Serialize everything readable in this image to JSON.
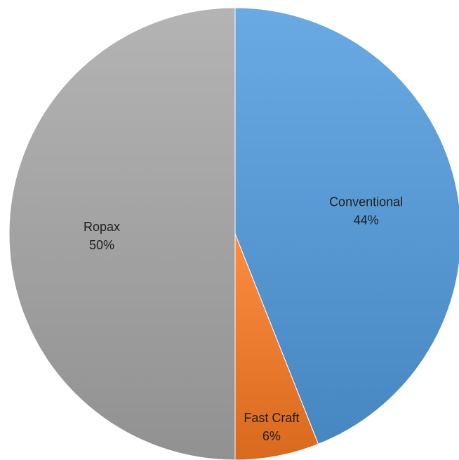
{
  "chart_data": {
    "type": "pie",
    "title": "",
    "start_angle_deg": 0,
    "direction": "clockwise",
    "slices": [
      {
        "name": "Conventional",
        "value": 44,
        "label": "44%",
        "color": "#5B9BD5"
      },
      {
        "name": "Fast Craft",
        "value": 6,
        "label": "6%",
        "color": "#ED7D31"
      },
      {
        "name": "Ropax",
        "value": 50,
        "label": "50%",
        "color": "#A5A5A5"
      }
    ],
    "legend": "none",
    "data_labels": "category-and-percent"
  }
}
